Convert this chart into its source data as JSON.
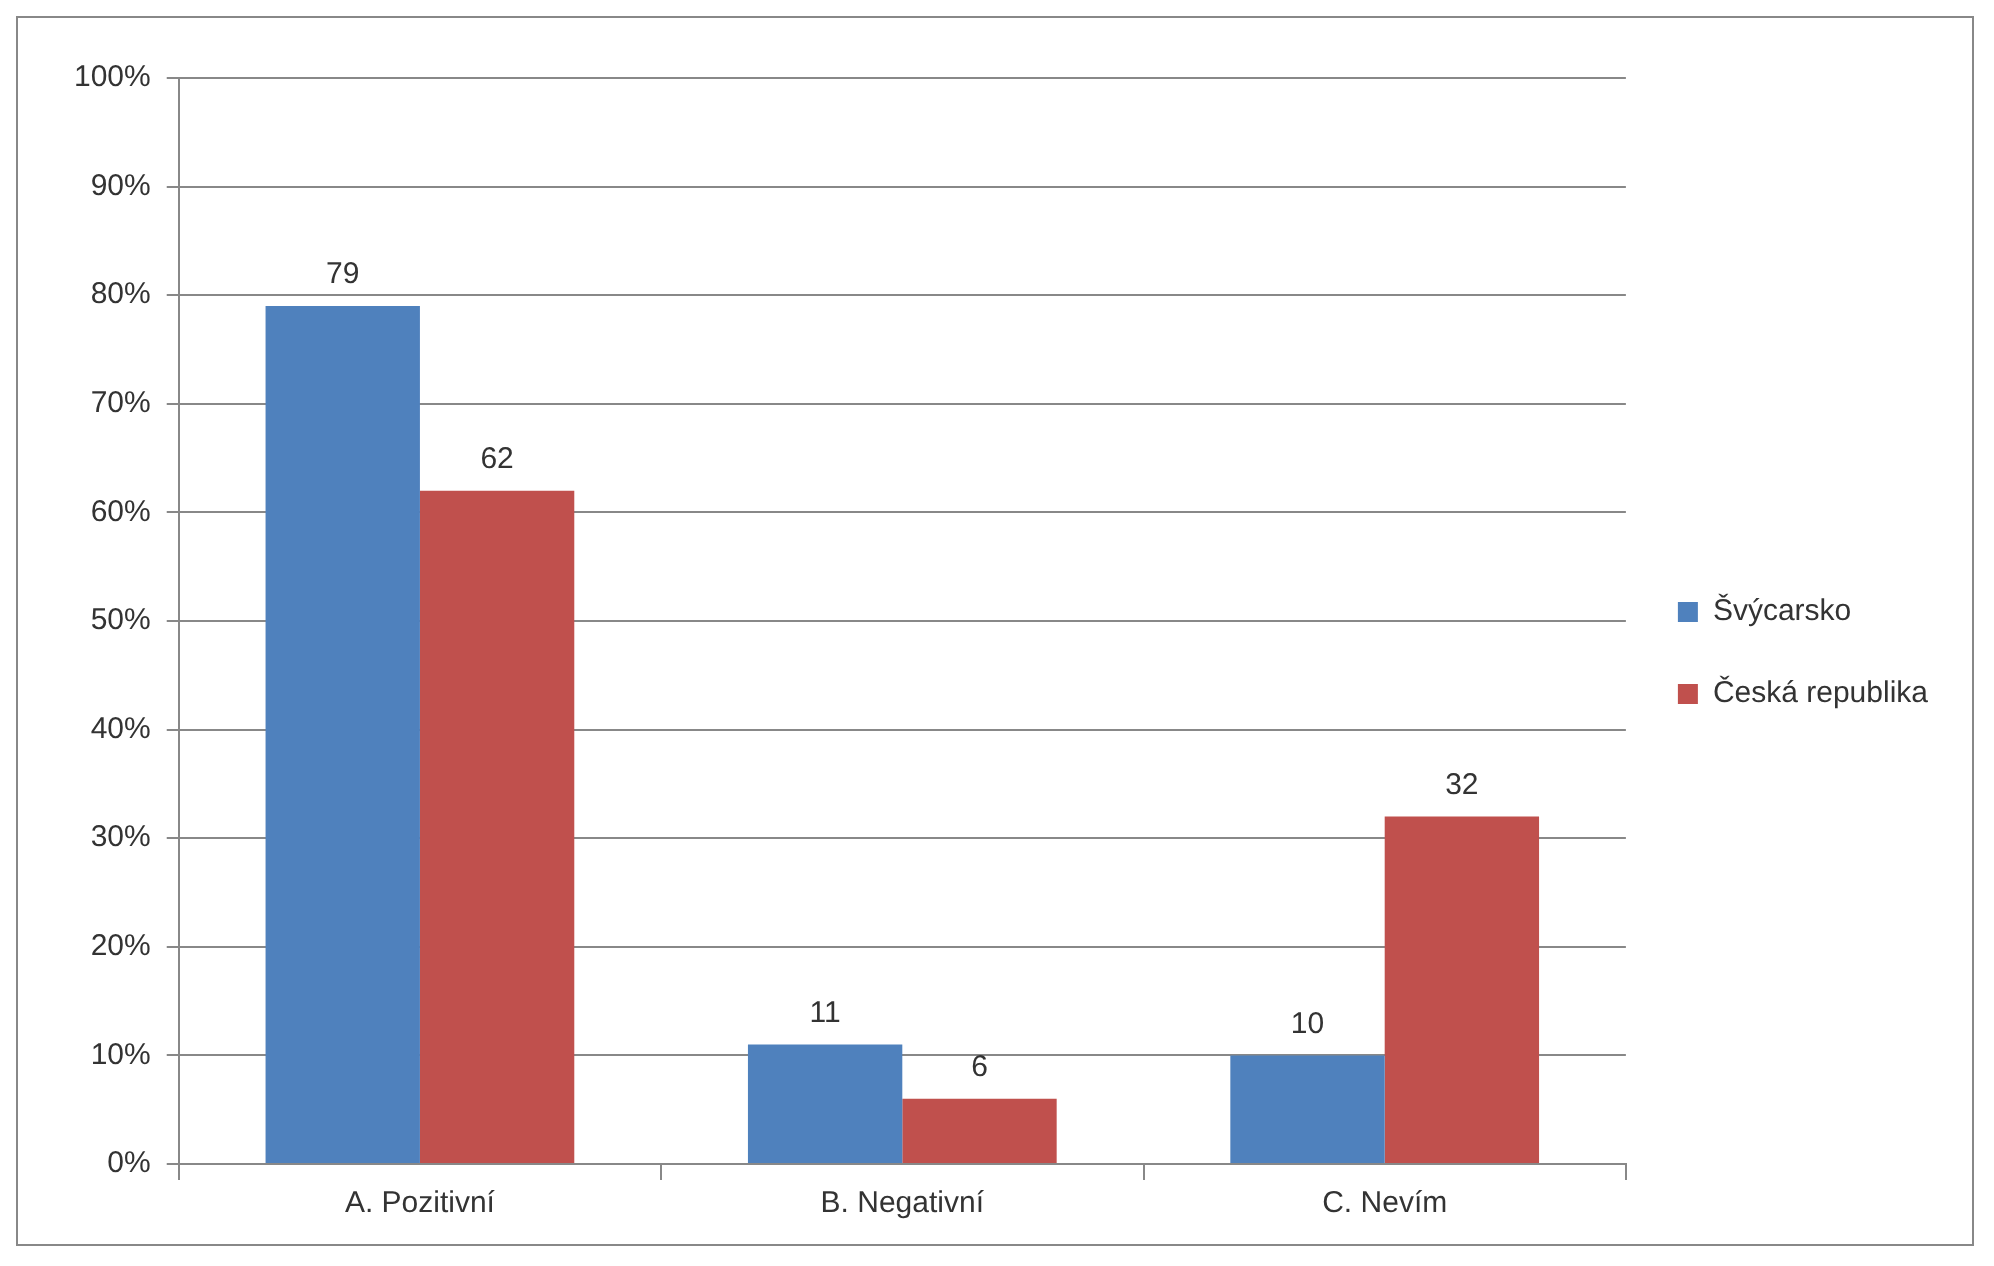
{
  "chart_data": {
    "type": "bar",
    "categories": [
      "A. Pozitivní",
      "B. Negativní",
      "C. Nevím"
    ],
    "series": [
      {
        "name": "Švýcarsko",
        "color": "#4f81bd",
        "values": [
          79,
          11,
          10
        ]
      },
      {
        "name": "Česká republika",
        "color": "#c0504d",
        "values": [
          62,
          6,
          32
        ]
      }
    ],
    "ylim": [
      0,
      100
    ],
    "yticks": [
      {
        "value": 0,
        "label": "0%"
      },
      {
        "value": 10,
        "label": "10%"
      },
      {
        "value": 20,
        "label": "20%"
      },
      {
        "value": 30,
        "label": "30%"
      },
      {
        "value": 40,
        "label": "40%"
      },
      {
        "value": 50,
        "label": "50%"
      },
      {
        "value": 60,
        "label": "60%"
      },
      {
        "value": 70,
        "label": "70%"
      },
      {
        "value": 80,
        "label": "80%"
      },
      {
        "value": 90,
        "label": "90%"
      },
      {
        "value": 100,
        "label": "100%"
      }
    ],
    "grid": "y",
    "legend": "right",
    "data_labels": true
  }
}
